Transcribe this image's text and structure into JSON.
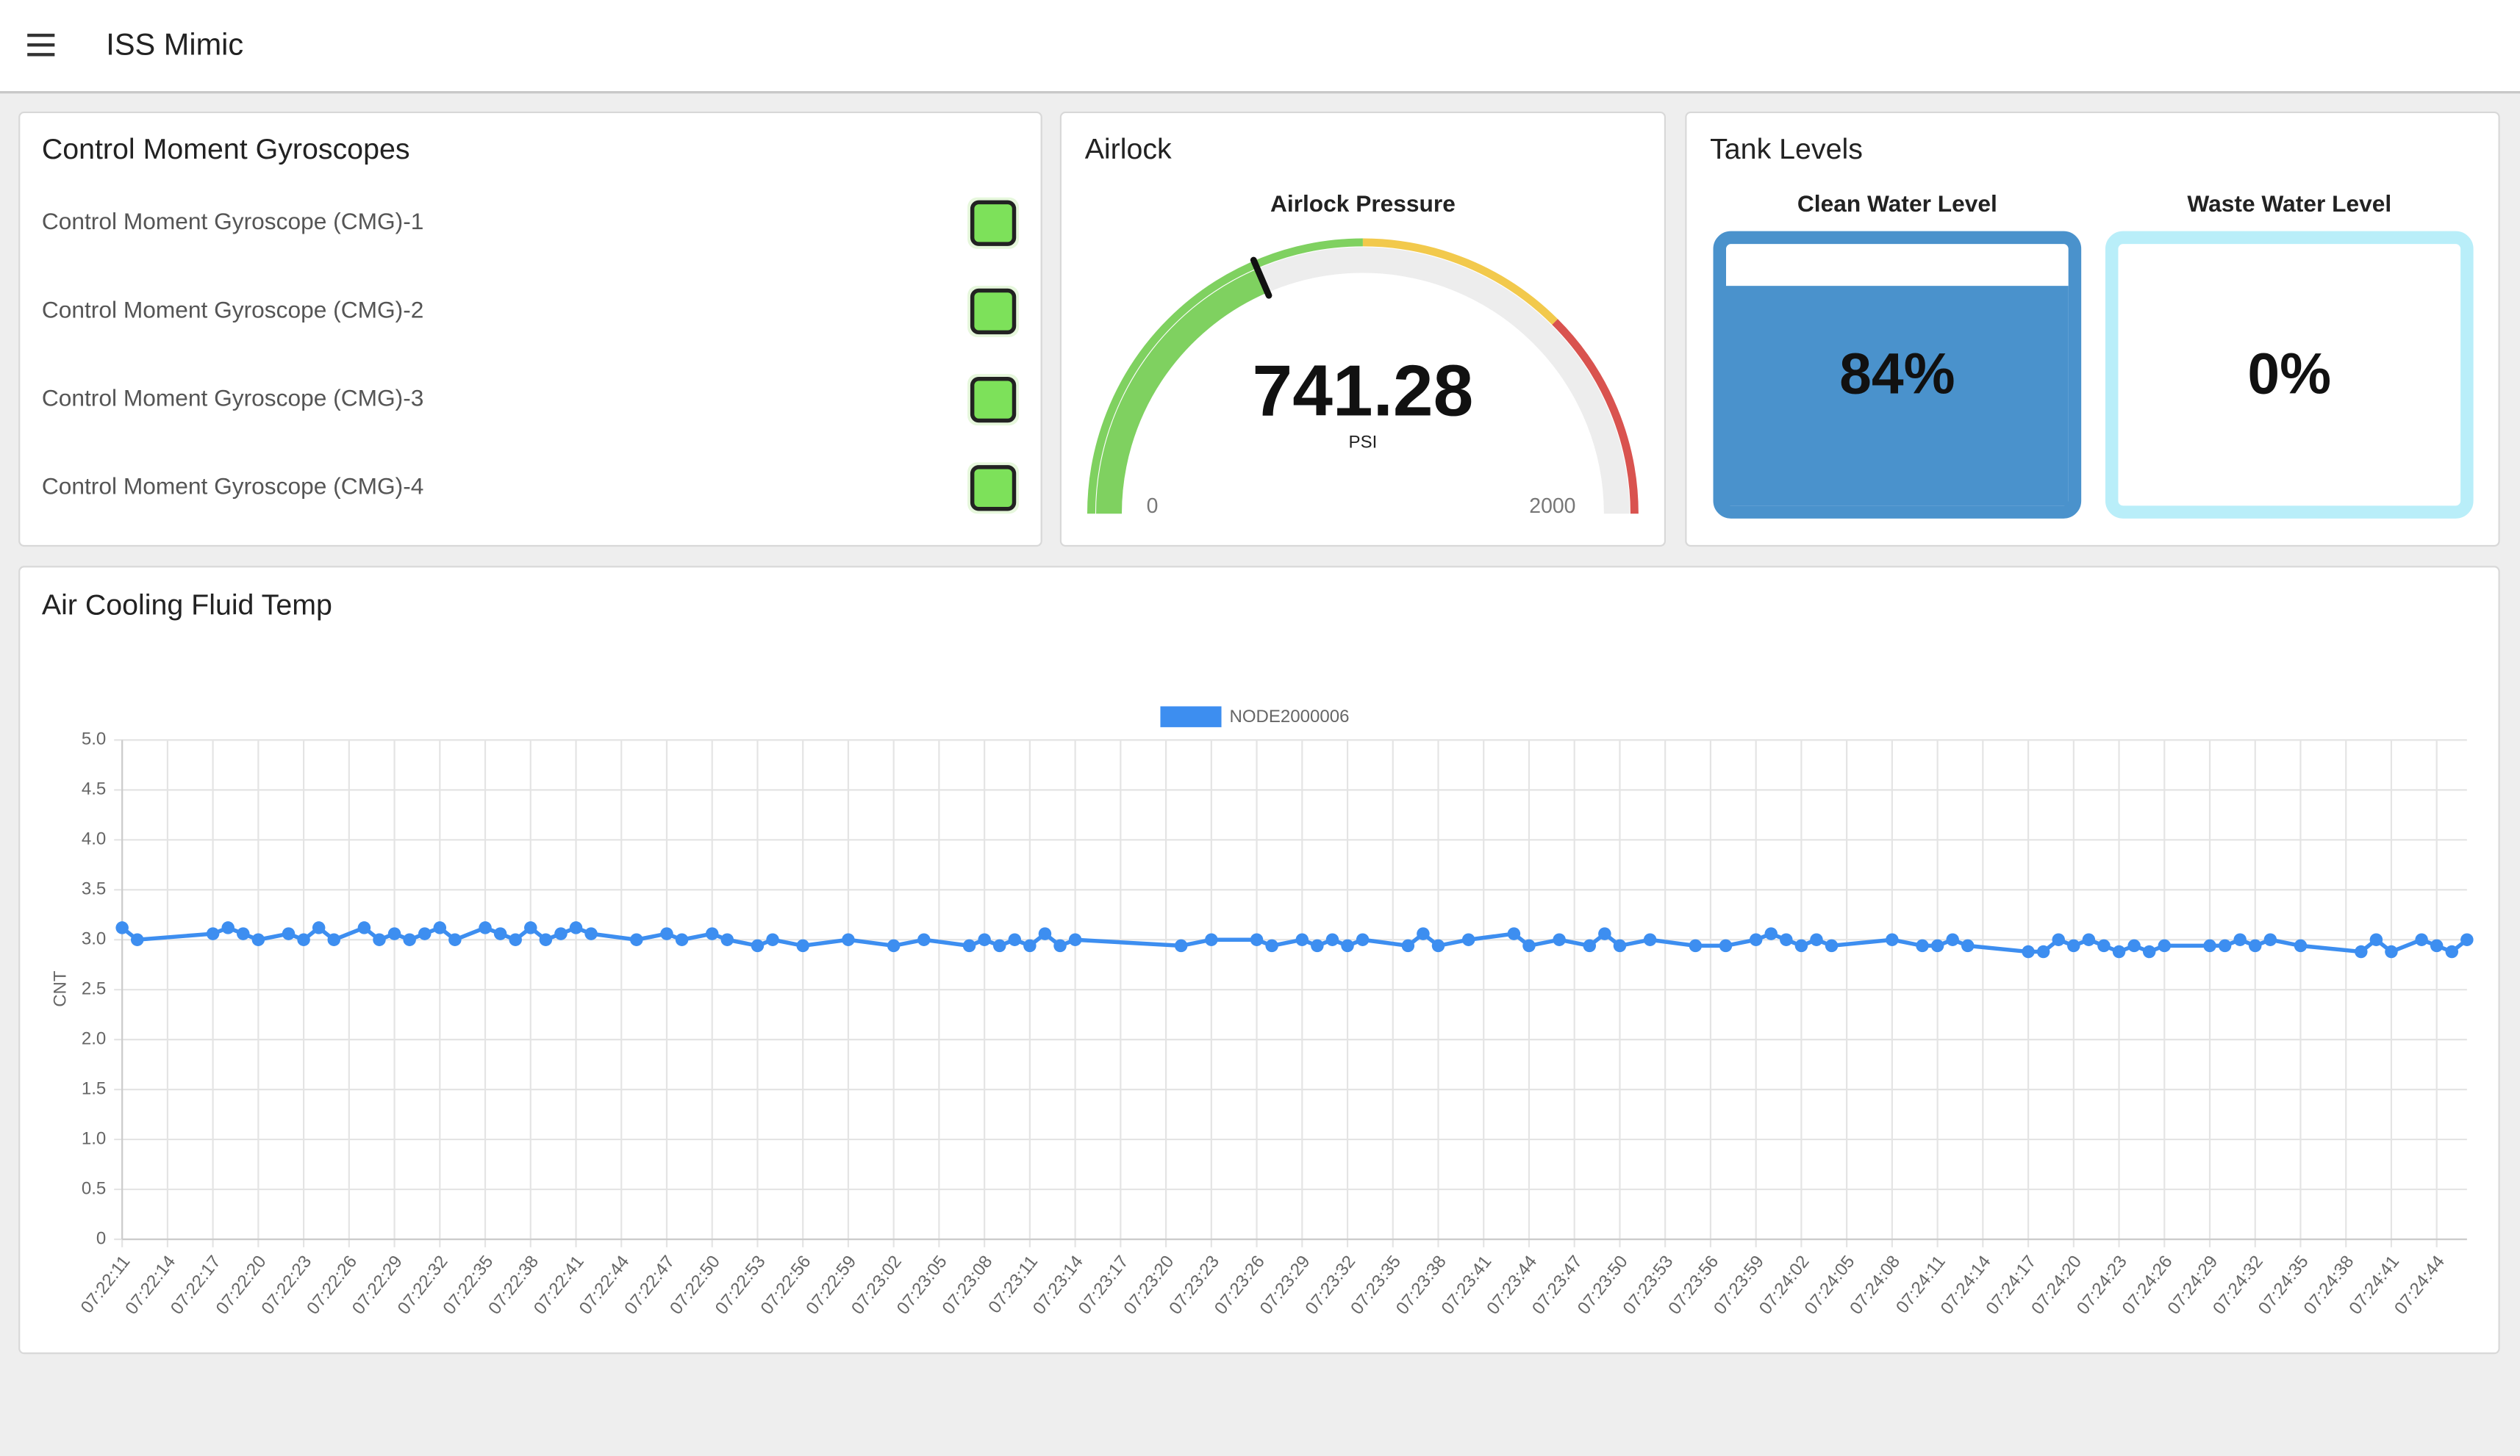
{
  "header": {
    "title": "ISS Mimic"
  },
  "cmg": {
    "title": "Control Moment Gyroscopes",
    "items": [
      "Control Moment Gyroscope (CMG)-1",
      "Control Moment Gyroscope (CMG)-2",
      "Control Moment Gyroscope (CMG)-3",
      "Control Moment Gyroscope (CMG)-4"
    ]
  },
  "airlock": {
    "title": "Airlock",
    "gauge_title": "Airlock Pressure",
    "value": 741.28,
    "unit": "PSI",
    "min": 0,
    "max": 2000,
    "bands": [
      {
        "from": 0,
        "to": 1000,
        "color": "#7fd160"
      },
      {
        "from": 1000,
        "to": 1500,
        "color": "#f2c94c"
      },
      {
        "from": 1500,
        "to": 2000,
        "color": "#d9534f"
      }
    ]
  },
  "tanks": {
    "title": "Tank Levels",
    "items": [
      {
        "label": "Clean Water Level",
        "value": 84,
        "value_label": "84%",
        "color": "#4a92cc"
      },
      {
        "label": "Waste Water Level",
        "value": 0,
        "value_label": "0%",
        "color": "#b9eef9"
      }
    ]
  },
  "chart_data": {
    "type": "line",
    "title": "Air Cooling Fluid Temp",
    "ylabel": "CNT",
    "x": [
      "07:22:11",
      "07:22:12",
      "07:22:17",
      "07:22:18",
      "07:22:19",
      "07:22:20",
      "07:22:22",
      "07:22:23",
      "07:22:24",
      "07:22:25",
      "07:22:27",
      "07:22:28",
      "07:22:29",
      "07:22:30",
      "07:22:31",
      "07:22:32",
      "07:22:33",
      "07:22:35",
      "07:22:36",
      "07:22:37",
      "07:22:38",
      "07:22:39",
      "07:22:40",
      "07:22:41",
      "07:22:42",
      "07:22:45",
      "07:22:47",
      "07:22:48",
      "07:22:50",
      "07:22:51",
      "07:22:53",
      "07:22:54",
      "07:22:56",
      "07:22:59",
      "07:23:02",
      "07:23:04",
      "07:23:07",
      "07:23:08",
      "07:23:09",
      "07:23:10",
      "07:23:11",
      "07:23:12",
      "07:23:13",
      "07:23:14",
      "07:23:21",
      "07:23:23",
      "07:23:26",
      "07:23:27",
      "07:23:29",
      "07:23:30",
      "07:23:31",
      "07:23:32",
      "07:23:33",
      "07:23:36",
      "07:23:37",
      "07:23:38",
      "07:23:40",
      "07:23:43",
      "07:23:44",
      "07:23:46",
      "07:23:48",
      "07:23:49",
      "07:23:50",
      "07:23:52",
      "07:23:55",
      "07:23:57",
      "07:23:59",
      "07:24:00",
      "07:24:01",
      "07:24:02",
      "07:24:03",
      "07:24:04",
      "07:24:08",
      "07:24:10",
      "07:24:11",
      "07:24:12",
      "07:24:13",
      "07:24:17",
      "07:24:18",
      "07:24:19",
      "07:24:20",
      "07:24:21",
      "07:24:22",
      "07:24:23",
      "07:24:24",
      "07:24:25",
      "07:24:26",
      "07:24:29",
      "07:24:30",
      "07:24:31",
      "07:24:32",
      "07:24:33",
      "07:24:35",
      "07:24:39",
      "07:24:40",
      "07:24:41",
      "07:24:43",
      "07:24:44",
      "07:24:45",
      "07:24:46"
    ],
    "series": [
      {
        "name": "NODE2000006",
        "color": "#3d8ef0",
        "values": [
          3.12,
          3.0,
          3.06,
          3.12,
          3.06,
          3.0,
          3.06,
          3.0,
          3.12,
          3.0,
          3.12,
          3.0,
          3.06,
          3.0,
          3.06,
          3.12,
          3.0,
          3.12,
          3.06,
          3.0,
          3.12,
          3.0,
          3.06,
          3.12,
          3.06,
          3.0,
          3.06,
          3.0,
          3.06,
          3.0,
          2.94,
          3.0,
          2.94,
          3.0,
          2.94,
          3.0,
          2.94,
          3.0,
          2.94,
          3.0,
          2.94,
          3.06,
          2.94,
          3.0,
          2.94,
          3.0,
          3.0,
          2.94,
          3.0,
          2.94,
          3.0,
          2.94,
          3.0,
          2.94,
          3.06,
          2.94,
          3.0,
          3.06,
          2.94,
          3.0,
          2.94,
          3.06,
          2.94,
          3.0,
          2.94,
          2.94,
          3.0,
          3.06,
          3.0,
          2.94,
          3.0,
          2.94,
          3.0,
          2.94,
          2.94,
          3.0,
          2.94,
          2.88,
          2.88,
          3.0,
          2.94,
          3.0,
          2.94,
          2.88,
          2.94,
          2.88,
          2.94,
          2.94,
          2.94,
          3.0,
          2.94,
          3.0,
          2.94,
          2.88,
          3.0,
          2.88,
          3.0,
          2.94,
          2.88,
          3.0
        ]
      }
    ],
    "xlim": [
      "07:22:11",
      "07:24:46"
    ],
    "xticks": [
      "07:22:11",
      "07:22:14",
      "07:22:17",
      "07:22:20",
      "07:22:23",
      "07:22:26",
      "07:22:29",
      "07:22:32",
      "07:22:35",
      "07:22:38",
      "07:22:41",
      "07:22:44",
      "07:22:47",
      "07:22:50",
      "07:22:53",
      "07:22:56",
      "07:22:59",
      "07:23:02",
      "07:23:05",
      "07:23:08",
      "07:23:11",
      "07:23:14",
      "07:23:17",
      "07:23:20",
      "07:23:23",
      "07:23:26",
      "07:23:29",
      "07:23:32",
      "07:23:35",
      "07:23:38",
      "07:23:41",
      "07:23:44",
      "07:23:47",
      "07:23:50",
      "07:23:53",
      "07:23:56",
      "07:23:59",
      "07:24:02",
      "07:24:05",
      "07:24:08",
      "07:24:11",
      "07:24:14",
      "07:24:17",
      "07:24:20",
      "07:24:23",
      "07:24:26",
      "07:24:29",
      "07:24:32",
      "07:24:35",
      "07:24:38",
      "07:24:41",
      "07:24:44"
    ],
    "ylim": [
      0,
      5
    ],
    "yticks": [
      0,
      0.5,
      {
        "value": 1,
        "label": "1.0"
      },
      1.5,
      {
        "value": 2,
        "label": "2.0"
      },
      2.5,
      {
        "value": 3,
        "label": "3.0"
      },
      3.5,
      {
        "value": 4,
        "label": "4.0"
      },
      4.5,
      {
        "value": 5,
        "label": "5.0"
      }
    ],
    "grid": true,
    "legend": "top"
  }
}
